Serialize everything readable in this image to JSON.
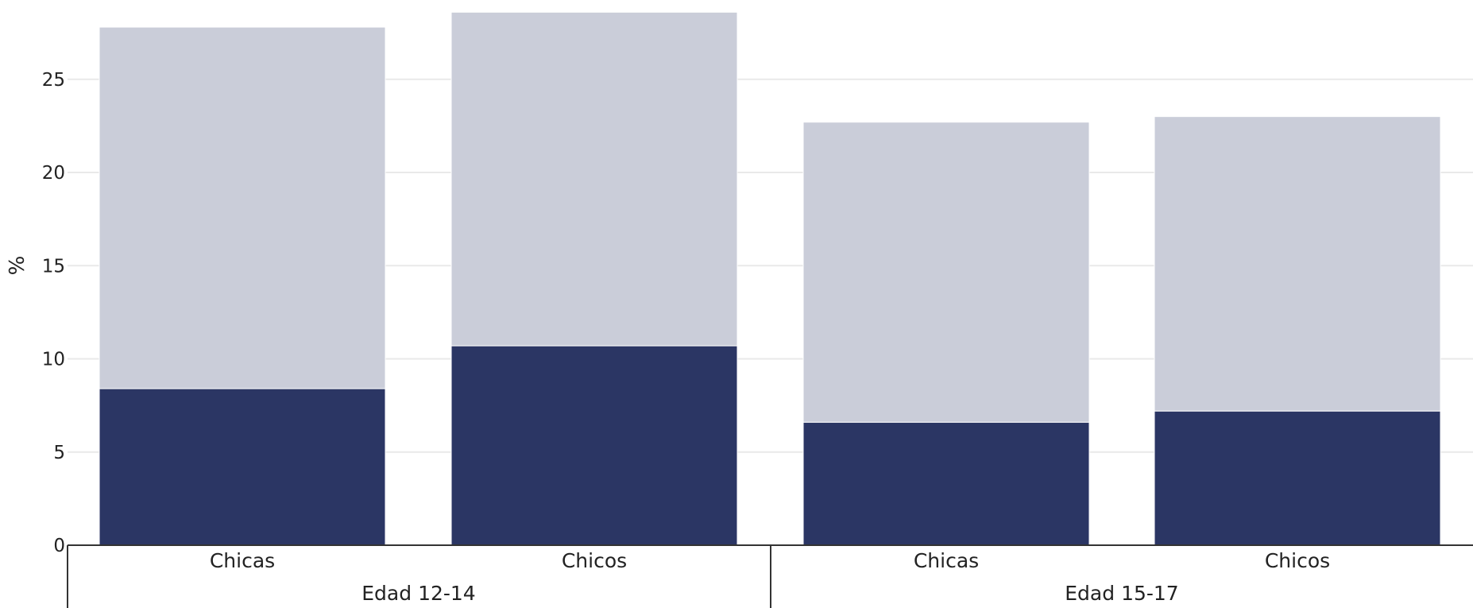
{
  "chart_data": {
    "type": "bar",
    "stacked": true,
    "ylabel": "%",
    "ylim": [
      0,
      28.7
    ],
    "yticks": [
      0,
      5,
      10,
      15,
      20,
      25
    ],
    "grid": true,
    "groups": [
      {
        "label": "Edad 12-14",
        "categories": [
          "Chicas",
          "Chicos"
        ]
      },
      {
        "label": "Edad 15-17",
        "categories": [
          "Chicas",
          "Chicos"
        ]
      }
    ],
    "categories": [
      "Chicas",
      "Chicos",
      "Chicas",
      "Chicos"
    ],
    "series": [
      {
        "values": [
          8.4,
          10.7,
          6.6,
          7.2
        ],
        "color": "#2b3664"
      },
      {
        "values": [
          19.4,
          17.9,
          16.1,
          15.8
        ],
        "color": "#cacdd9"
      }
    ],
    "totals": [
      27.8,
      28.6,
      22.7,
      23.0
    ],
    "colors": {
      "grid": "#e9e9e9",
      "axis": "#333333"
    }
  }
}
